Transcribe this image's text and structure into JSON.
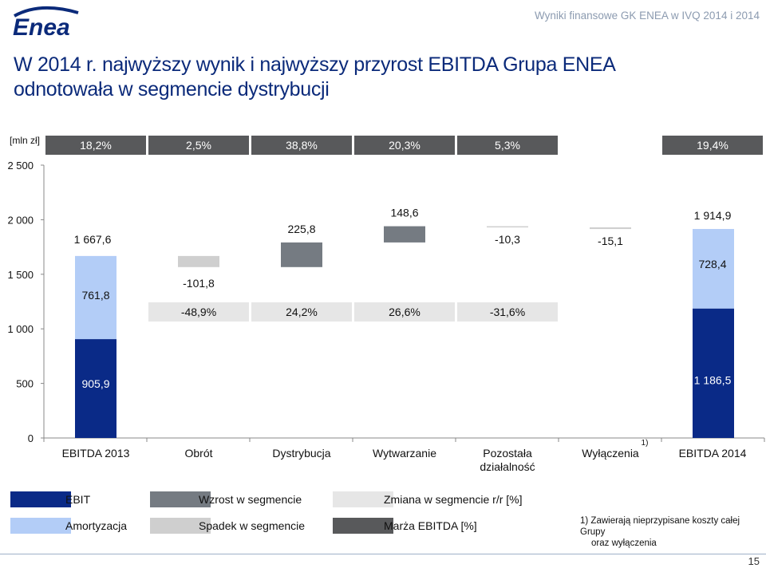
{
  "header": {
    "logo_text": "Enea",
    "report_title": "Wyniki finansowe GK ENEA w IVQ 2014 i 2014"
  },
  "title": {
    "line1": "W 2014 r. najwyższy wynik i najwyższy przyrost EBITDA Grupa ENEA",
    "line2": "odnotowała w segmencie dystrybucji"
  },
  "colors": {
    "ebit": "#0a2a87",
    "amortyzacja": "#b3cdf7",
    "wzrost": "#757b82",
    "spadek": "#cfcfcf",
    "zmiana": "#e6e6e6",
    "marza": "#58595b",
    "title": "#0b2a7a"
  },
  "chart_data": {
    "type": "bar",
    "subtype": "waterfall",
    "unit_label": "[mln zł]",
    "ylim": [
      0,
      2500
    ],
    "yticks": [
      "0",
      "500",
      "1 000",
      "1 500",
      "2 000",
      "2 500"
    ],
    "ytick_values": [
      0,
      500,
      1000,
      1500,
      2000,
      2500
    ],
    "categories": [
      "EBITDA 2013",
      "Obrót",
      "Dystrybucja",
      "Wytwarzanie",
      "Pozostała działalność",
      "Wyłączenia",
      "EBITDA 2014"
    ],
    "footnote_marker": "1)",
    "totals": [
      {
        "index": 0,
        "ebit": 905.9,
        "amortyzacja": 761.8,
        "total": 1667.6,
        "ebit_label": "905,9",
        "amort_label": "761,8",
        "total_label": "1 667,6"
      },
      {
        "index": 6,
        "ebit": 1186.5,
        "amortyzacja": 728.4,
        "total": 1914.9,
        "ebit_label": "1 186,5",
        "amort_label": "728,4",
        "total_label": "1 914,9"
      }
    ],
    "changes": [
      {
        "index": 1,
        "value": -101.8,
        "label": "-101,8"
      },
      {
        "index": 2,
        "value": 225.8,
        "label": "225,8"
      },
      {
        "index": 3,
        "value": 148.6,
        "label": "148,6"
      },
      {
        "index": 4,
        "value": -10.3,
        "label": "-10,3"
      },
      {
        "index": 5,
        "value": -15.1,
        "label": "-15,1"
      }
    ],
    "segment_change_yoy": [
      {
        "index": 1,
        "label": "-48,9%"
      },
      {
        "index": 2,
        "label": "24,2%"
      },
      {
        "index": 3,
        "label": "26,6%"
      },
      {
        "index": 4,
        "label": "-31,6%"
      }
    ],
    "ebitda_margin": [
      {
        "index": 0,
        "label": "18,2%"
      },
      {
        "index": 1,
        "label": "2,5%"
      },
      {
        "index": 2,
        "label": "38,8%"
      },
      {
        "index": 3,
        "label": "20,3%"
      },
      {
        "index": 4,
        "label": "5,3%"
      },
      {
        "index": 6,
        "label": "19,4%"
      }
    ]
  },
  "legend": {
    "ebit": "EBIT",
    "amortyzacja": "Amortyzacja",
    "wzrost": "Wzrost w segmencie",
    "spadek": "Spadek w segmencie",
    "zmiana": "Zmiana w segmencie r/r [%]",
    "marza": "Marża EBITDA [%]"
  },
  "footnote": {
    "line1": "1) Zawierają nieprzypisane koszty całej Grupy",
    "line2": "oraz wyłączenia"
  },
  "page_number": "15"
}
